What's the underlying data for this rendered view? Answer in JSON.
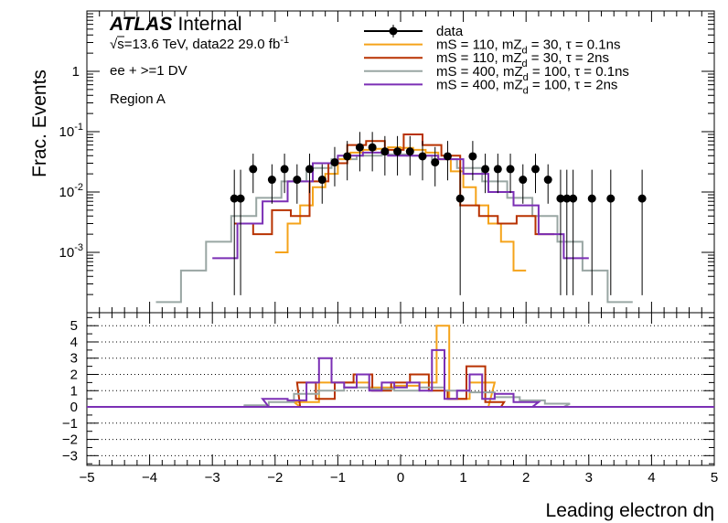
{
  "chart_data": [
    {
      "type": "line",
      "panel": "main",
      "ylabel": "Frac. Events",
      "yscale": "log",
      "ylim": [
        0.0001,
        10
      ],
      "xlim": [
        -5,
        5
      ],
      "y_ticks": [
        {
          "value": 0.001,
          "label": "10",
          "exp": "-3"
        },
        {
          "value": 0.01,
          "label": "10",
          "exp": "-2"
        },
        {
          "value": 0.1,
          "label": "10",
          "exp": "-1"
        },
        {
          "value": 1,
          "label": "1",
          "exp": ""
        }
      ],
      "legend_position": "top-right",
      "series": [
        {
          "name": "data",
          "style": "points",
          "color": "#000000",
          "x": [
            -2.65,
            -2.55,
            -2.35,
            -2.05,
            -1.85,
            -1.65,
            -1.45,
            -1.25,
            -1.05,
            -0.85,
            -0.65,
            -0.45,
            -0.25,
            -0.05,
            0.15,
            0.35,
            0.55,
            0.75,
            0.95,
            1.15,
            1.35,
            1.55,
            1.75,
            1.95,
            2.15,
            2.35,
            2.55,
            2.65,
            2.75,
            3.05,
            3.35,
            3.85
          ],
          "y": [
            0.0078,
            0.0078,
            0.024,
            0.016,
            0.024,
            0.016,
            0.024,
            0.016,
            0.031,
            0.039,
            0.055,
            0.055,
            0.047,
            0.047,
            0.047,
            0.039,
            0.031,
            0.039,
            0.0078,
            0.039,
            0.024,
            0.024,
            0.024,
            0.016,
            0.024,
            0.016,
            0.0078,
            0.0078,
            0.0078,
            0.0078,
            0.0078,
            0.0078
          ]
        },
        {
          "name": "mS = 110, mZ_d = 30, τ = 0.1ns",
          "style": "step",
          "color": "#f5a31a",
          "x": [
            -1.9,
            -1.7,
            -1.5,
            -1.3,
            -1.1,
            -0.9,
            -0.7,
            -0.5,
            -0.3,
            -0.1,
            0.1,
            0.3,
            0.5,
            0.7,
            0.9,
            1.1,
            1.3,
            1.5,
            1.7,
            1.9
          ],
          "y": [
            0.001,
            0.003,
            0.006,
            0.012,
            0.02,
            0.035,
            0.045,
            0.05,
            0.052,
            0.055,
            0.054,
            0.05,
            0.045,
            0.035,
            0.022,
            0.012,
            0.006,
            0.003,
            0.0015,
            0.0005
          ]
        },
        {
          "name": "mS = 110, mZ_d = 30, τ = 2ns",
          "style": "step",
          "color": "#b83200",
          "x": [
            -2.5,
            -2.2,
            -1.9,
            -1.6,
            -1.3,
            -1.0,
            -0.7,
            -0.4,
            -0.1,
            0.2,
            0.5,
            0.8,
            1.1,
            1.4,
            1.7,
            2.0,
            2.3
          ],
          "y": [
            0.003,
            0.002,
            0.005,
            0.004,
            0.015,
            0.03,
            0.06,
            0.07,
            0.05,
            0.09,
            0.06,
            0.04,
            0.006,
            0.004,
            0.003,
            0.004,
            0.002
          ]
        },
        {
          "name": "mS = 400, mZ_d = 100, τ = 0.1ns",
          "style": "step",
          "color": "#99a6a3",
          "x": [
            -3.7,
            -3.3,
            -2.9,
            -2.5,
            -2.1,
            -1.7,
            -1.3,
            -0.9,
            -0.5,
            -0.1,
            0.3,
            0.7,
            1.1,
            1.5,
            1.9,
            2.3,
            2.7,
            3.1,
            3.5
          ],
          "y": [
            0.00015,
            0.0005,
            0.0015,
            0.004,
            0.008,
            0.015,
            0.025,
            0.035,
            0.04,
            0.042,
            0.04,
            0.035,
            0.025,
            0.015,
            0.008,
            0.004,
            0.0015,
            0.0005,
            0.00015
          ]
        },
        {
          "name": "mS = 400, mZ_d = 100, τ = 2ns",
          "style": "step",
          "color": "#7b2fb5",
          "x": [
            -2.8,
            -2.4,
            -2.0,
            -1.6,
            -1.2,
            -0.8,
            -0.4,
            0.0,
            0.4,
            0.8,
            1.2,
            1.6,
            2.0,
            2.4,
            2.8
          ],
          "y": [
            0.0008,
            0.003,
            0.007,
            0.015,
            0.03,
            0.04,
            0.045,
            0.04,
            0.04,
            0.035,
            0.02,
            0.01,
            0.006,
            0.002,
            0.0008
          ]
        }
      ]
    },
    {
      "type": "line",
      "panel": "ratio",
      "xlabel": "Leading electron dη",
      "xlim": [
        -5,
        5
      ],
      "ylim": [
        -3.6,
        5.8
      ],
      "x_ticks": [
        -5,
        -4,
        -3,
        -2,
        -1,
        0,
        1,
        2,
        3,
        4,
        5
      ],
      "y_ticks": [
        -3,
        -2,
        -1,
        0,
        1,
        2,
        3,
        4,
        5
      ],
      "grid": true,
      "series": [
        {
          "name": "mS = 110, mZ_d = 30, τ = 0.1ns",
          "color": "#f5a31a",
          "x": [
            -1.5,
            -1.1,
            -0.7,
            -0.3,
            0.1,
            0.5,
            0.65,
            0.9,
            1.3
          ],
          "y": [
            0.3,
            1.5,
            1.5,
            1.2,
            1.3,
            1.5,
            5.0,
            0.5,
            1.5
          ]
        },
        {
          "name": "mS = 110, mZ_d = 30, τ = 2ns",
          "color": "#b83200",
          "x": [
            -1.5,
            -1.2,
            -0.9,
            -0.6,
            -0.3,
            0.0,
            0.3,
            0.6,
            0.9,
            1.2,
            1.5
          ],
          "y": [
            1.5,
            0.5,
            1.5,
            2.0,
            1.0,
            1.5,
            2.0,
            1.0,
            0.5,
            2.5,
            0.3
          ]
        },
        {
          "name": "mS = 400, mZ_d = 100, τ = 0.1ns",
          "color": "#99a6a3",
          "x": [
            -2.3,
            -1.9,
            -1.5,
            -1.1,
            -0.7,
            -0.3,
            0.1,
            0.5,
            0.9,
            1.3,
            1.7,
            2.1,
            2.5
          ],
          "y": [
            0.1,
            0.3,
            0.8,
            1.0,
            1.2,
            1.1,
            1.0,
            1.2,
            1.0,
            0.9,
            0.6,
            0.4,
            0.2
          ]
        },
        {
          "name": "mS = 400, mZ_d = 100, τ = 2ns",
          "color": "#7b2fb5",
          "x": [
            -2.0,
            -1.6,
            -1.4,
            -1.2,
            -1.0,
            -0.8,
            -0.6,
            -0.4,
            -0.2,
            0.0,
            0.2,
            0.4,
            0.6,
            0.8,
            1.0,
            1.2,
            1.4,
            1.6,
            2.0
          ],
          "y": [
            0.5,
            0.4,
            1.5,
            3.0,
            1.5,
            1.2,
            2.0,
            1.0,
            1.5,
            1.2,
            1.5,
            1.0,
            3.5,
            0.5,
            1.0,
            2.0,
            0.5,
            0.8,
            0.3
          ]
        }
      ]
    }
  ],
  "labels": {
    "atlas": "ATLAS",
    "internal": "Internal",
    "energy_sqrt": "√s",
    "energy": "=13.6 TeV, data22 29.0 fb",
    "energy_exp": "-1",
    "selection": "ee + >=1 DV",
    "region": "Region A"
  },
  "legend": [
    {
      "pre": "data",
      "sub": "",
      "post": "",
      "color": "#000000",
      "marker": true
    },
    {
      "pre": "mS = 110, mZ",
      "sub": "d",
      "post": " = 30, τ = 0.1ns",
      "color": "#f5a31a",
      "marker": false
    },
    {
      "pre": "mS = 110, mZ",
      "sub": "d",
      "post": " = 30, τ = 2ns",
      "color": "#b83200",
      "marker": false
    },
    {
      "pre": "mS = 400, mZ",
      "sub": "d",
      "post": " = 100, τ = 0.1ns",
      "color": "#99a6a3",
      "marker": false
    },
    {
      "pre": "mS = 400, mZ",
      "sub": "d",
      "post": " = 100, τ = 2ns",
      "color": "#7b2fb5",
      "marker": false
    }
  ]
}
